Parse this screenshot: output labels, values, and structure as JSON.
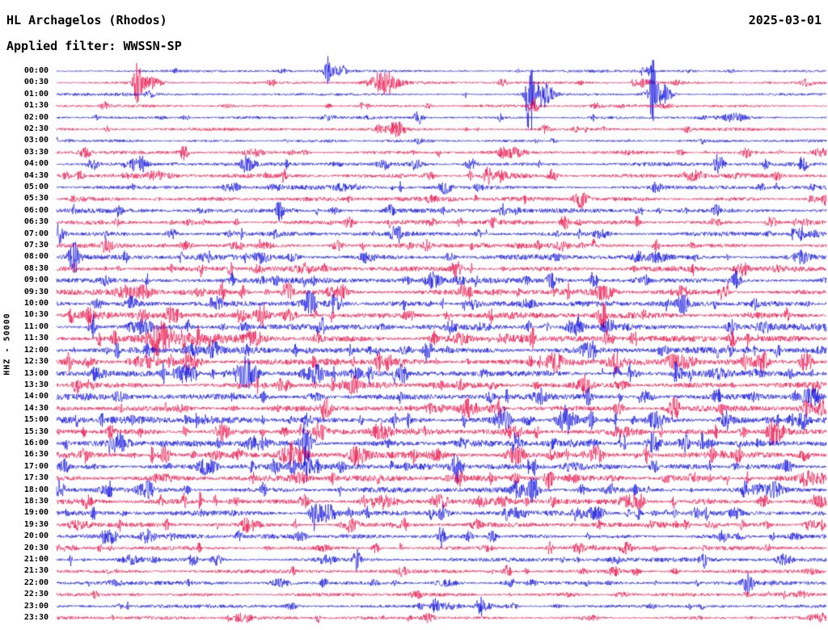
{
  "header": {
    "station_title": "HL Archagelos (Rhodos)",
    "date": "2025-03-01",
    "filter_label": "Applied filter: WWSSN-SP"
  },
  "axis": {
    "channel_label": "HHZ - 50000"
  },
  "chart_data": {
    "type": "line",
    "subtype": "helicorder-seismogram",
    "title": "HL Archagelos (Rhodos)",
    "date": "2025-03-01",
    "filter": "WWSSN-SP",
    "channel": "HHZ",
    "scale": 50000,
    "minutes_per_row": 30,
    "rows": 48,
    "grid": false,
    "legend": false,
    "colors": {
      "even_rows": "#0000dd",
      "odd_rows": "#e8003f",
      "text": "#000000",
      "background": "#ffffff"
    },
    "row_times": [
      "00:00",
      "00:30",
      "01:00",
      "01:30",
      "02:00",
      "02:30",
      "03:00",
      "03:30",
      "04:00",
      "04:30",
      "05:00",
      "05:30",
      "06:00",
      "06:30",
      "07:00",
      "07:30",
      "08:00",
      "08:30",
      "09:00",
      "09:30",
      "10:00",
      "10:30",
      "11:00",
      "11:30",
      "12:00",
      "12:30",
      "13:00",
      "13:30",
      "14:00",
      "14:30",
      "15:00",
      "15:30",
      "16:00",
      "16:30",
      "17:00",
      "17:30",
      "18:00",
      "18:30",
      "19:00",
      "19:30",
      "20:00",
      "20:30",
      "21:00",
      "21:30",
      "22:00",
      "22:30",
      "23:00",
      "23:30"
    ],
    "row_activity": [
      0.15,
      0.18,
      0.15,
      0.18,
      0.2,
      0.22,
      0.18,
      0.3,
      0.4,
      0.45,
      0.45,
      0.5,
      0.55,
      0.5,
      0.55,
      0.55,
      0.65,
      0.7,
      0.75,
      0.7,
      0.8,
      0.85,
      0.8,
      0.85,
      0.85,
      0.8,
      0.85,
      0.8,
      0.85,
      0.85,
      0.9,
      0.85,
      0.9,
      0.85,
      0.8,
      0.8,
      0.75,
      0.7,
      0.65,
      0.55,
      0.5,
      0.45,
      0.45,
      0.4,
      0.4,
      0.35,
      0.3,
      0.28
    ],
    "events": [
      {
        "row": 0,
        "x": 0.352,
        "amp": 16,
        "w": 0.004
      },
      {
        "row": 0,
        "x": 0.77,
        "amp": 8,
        "w": 0.004
      },
      {
        "row": 1,
        "x": 0.105,
        "amp": 24,
        "w": 0.005
      },
      {
        "row": 1,
        "x": 0.425,
        "amp": 14,
        "w": 0.018
      },
      {
        "row": 2,
        "x": 0.615,
        "amp": 55,
        "w": 0.005
      },
      {
        "row": 2,
        "x": 0.775,
        "amp": 44,
        "w": 0.004
      },
      {
        "row": 3,
        "x": 0.62,
        "amp": 10,
        "w": 0.006
      },
      {
        "row": 4,
        "x": 0.47,
        "amp": 9,
        "w": 0.006
      },
      {
        "row": 5,
        "x": 0.44,
        "amp": 10,
        "w": 0.012
      },
      {
        "row": 7,
        "x": 0.165,
        "amp": 9,
        "w": 0.006
      },
      {
        "row": 8,
        "x": 0.86,
        "amp": 13,
        "w": 0.006
      },
      {
        "row": 8,
        "x": 0.97,
        "amp": 11,
        "w": 0.005
      },
      {
        "row": 9,
        "x": 0.56,
        "amp": 10,
        "w": 0.006
      },
      {
        "row": 12,
        "x": 0.29,
        "amp": 12,
        "w": 0.006
      },
      {
        "row": 14,
        "x": 0.44,
        "amp": 11,
        "w": 0.006
      },
      {
        "row": 17,
        "x": 0.52,
        "amp": 12,
        "w": 0.006
      },
      {
        "row": 19,
        "x": 0.3,
        "amp": 13,
        "w": 0.007
      },
      {
        "row": 21,
        "x": 0.15,
        "amp": 14,
        "w": 0.008
      },
      {
        "row": 23,
        "x": 0.135,
        "amp": 17,
        "w": 0.014
      },
      {
        "row": 26,
        "x": 0.45,
        "amp": 12,
        "w": 0.006
      },
      {
        "row": 29,
        "x": 0.35,
        "amp": 13,
        "w": 0.006
      },
      {
        "row": 31,
        "x": 0.93,
        "amp": 14,
        "w": 0.007
      },
      {
        "row": 34,
        "x": 0.52,
        "amp": 12,
        "w": 0.006
      },
      {
        "row": 36,
        "x": 0.62,
        "amp": 12,
        "w": 0.006
      },
      {
        "row": 38,
        "x": 0.335,
        "amp": 22,
        "w": 0.005
      },
      {
        "row": 40,
        "x": 0.5,
        "amp": 11,
        "w": 0.005
      },
      {
        "row": 42,
        "x": 0.39,
        "amp": 12,
        "w": 0.005
      },
      {
        "row": 44,
        "x": 0.9,
        "amp": 11,
        "w": 0.005
      },
      {
        "row": 46,
        "x": 0.55,
        "amp": 11,
        "w": 0.005
      }
    ]
  }
}
